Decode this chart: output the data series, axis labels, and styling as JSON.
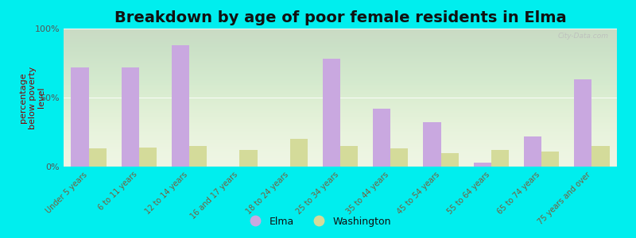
{
  "title": "Breakdown by age of poor female residents in Elma",
  "ylabel": "percentage\nbelow poverty\nlevel",
  "categories": [
    "Under 5 years",
    "6 to 11 years",
    "12 to 14 years",
    "16 and 17 years",
    "18 to 24 years",
    "25 to 34 years",
    "35 to 44 years",
    "45 to 54 years",
    "55 to 64 years",
    "65 to 74 years",
    "75 years and over"
  ],
  "elma_values": [
    72,
    72,
    88,
    0,
    0,
    78,
    42,
    32,
    3,
    22,
    63
  ],
  "washington_values": [
    13,
    14,
    15,
    12,
    20,
    15,
    13,
    10,
    12,
    11,
    15
  ],
  "elma_color": "#c9a8e0",
  "washington_color": "#d4db9a",
  "background_color": "#00eeee",
  "plot_bg_color": "#eef5e2",
  "ylim": [
    0,
    100
  ],
  "yticks": [
    0,
    50,
    100
  ],
  "ytick_labels": [
    "0%",
    "50%",
    "100%"
  ],
  "bar_width": 0.35,
  "title_fontsize": 14,
  "axis_label_fontsize": 8,
  "tick_fontsize": 7,
  "legend_labels": [
    "Elma",
    "Washington"
  ],
  "watermark": "City-Data.com"
}
